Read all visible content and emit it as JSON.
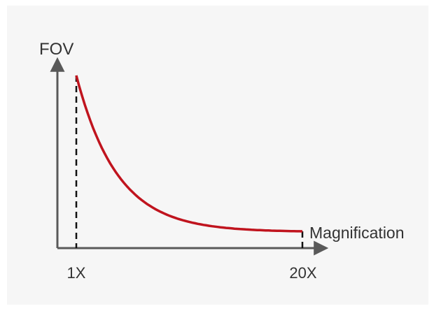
{
  "chart_data": {
    "type": "line",
    "ylabel": "FOV",
    "xlabel": "Magnification",
    "x_ticks": [
      "1X",
      "20X"
    ],
    "x": [
      1,
      20
    ],
    "series": [
      {
        "values": [
          1.0,
          0.05
        ]
      }
    ],
    "curve": "inverse",
    "grid": false,
    "legend": "none",
    "colors": {
      "curve": "#c0141e",
      "axis": "#595959",
      "guide": "#111111",
      "background": "#f6f6f6"
    }
  }
}
